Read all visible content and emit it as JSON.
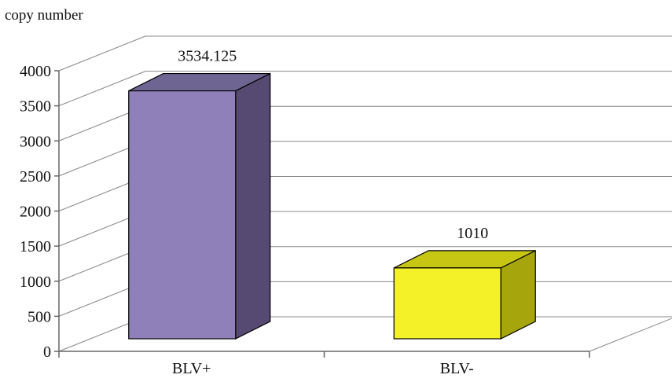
{
  "chart_data": {
    "type": "bar",
    "title": "",
    "ylabel": "copy number",
    "xlabel": "",
    "categories": [
      "BLV+",
      "BLV-"
    ],
    "values": [
      3534.125,
      1010
    ],
    "data_labels": [
      "3534.125",
      "1010"
    ],
    "ylim": [
      0,
      4000
    ],
    "yticks": [
      0,
      500,
      1000,
      1500,
      2000,
      2500,
      3000,
      3500,
      4000
    ],
    "grid": true,
    "legend": "none",
    "style": "3d-column",
    "colors": {
      "bars": [
        "#8f80b9",
        "#f4f129"
      ],
      "bar_tops": [
        "#6f6593",
        "#c6c613"
      ],
      "bar_sides": [
        "#564a72",
        "#a6a60c"
      ],
      "gridlines": "#888888",
      "axis": "#666666"
    }
  }
}
